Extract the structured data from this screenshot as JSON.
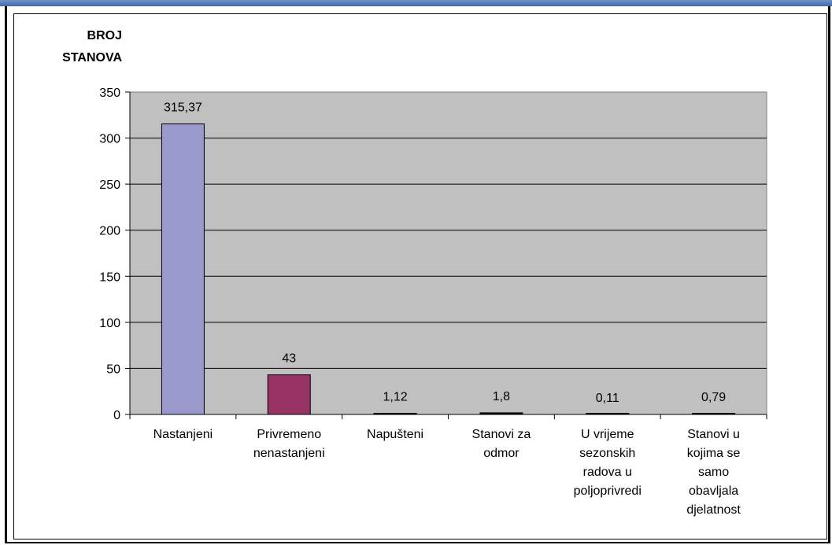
{
  "chart_data": {
    "type": "bar",
    "ylabel": [
      "BROJ",
      "STANOVA"
    ],
    "ylim": [
      0,
      350
    ],
    "yticks": [
      0,
      50,
      100,
      150,
      200,
      250,
      300,
      350
    ],
    "grid": true,
    "categories": [
      [
        "Nastanjeni"
      ],
      [
        "Privremeno",
        "nenastanjeni"
      ],
      [
        "Napušteni"
      ],
      [
        "Stanovi za",
        "odmor"
      ],
      [
        "U vrijeme",
        "sezonskih",
        "radova u",
        "poljoprivredi"
      ],
      [
        "Stanovi u",
        "kojima se",
        "samo",
        "obavljala",
        "djelatnost"
      ]
    ],
    "values": [
      315.37,
      43,
      1.12,
      1.8,
      0.11,
      0.79
    ],
    "data_labels": [
      "315,37",
      "43",
      "1,12",
      "1,8",
      "0,11",
      "0,79"
    ],
    "colors": {
      "plot_background": "#c0c0c0",
      "bars": [
        "#9999cc",
        "#993366",
        "#000000",
        "#000000",
        "#000000",
        "#000000"
      ]
    }
  }
}
